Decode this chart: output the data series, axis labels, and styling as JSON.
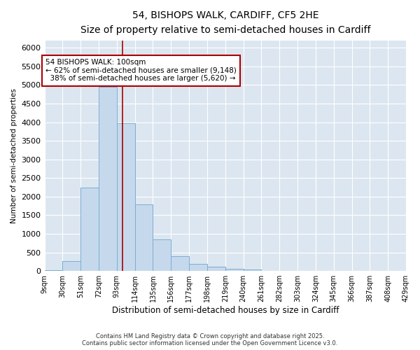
{
  "title_line1": "54, BISHOPS WALK, CARDIFF, CF5 2HE",
  "title_line2": "Size of property relative to semi-detached houses in Cardiff",
  "xlabel": "Distribution of semi-detached houses by size in Cardiff",
  "ylabel": "Number of semi-detached properties",
  "bin_edges": [
    9,
    30,
    51,
    72,
    93,
    114,
    135,
    156,
    177,
    198,
    219,
    240,
    261,
    282,
    303,
    324,
    345,
    366,
    387,
    408,
    429
  ],
  "bar_heights": [
    30,
    260,
    2250,
    4950,
    3980,
    1800,
    850,
    400,
    200,
    110,
    65,
    35,
    5,
    5,
    2,
    2,
    1,
    1,
    0,
    0
  ],
  "bar_color": "#c6d9ec",
  "bar_edgecolor": "#7aadd4",
  "vline_x": 100,
  "vline_color": "#aa0000",
  "property_label": "54 BISHOPS WALK: 100sqm",
  "smaller_pct": 62,
  "smaller_count": 9148,
  "larger_pct": 38,
  "larger_count": 5620,
  "ylim": [
    0,
    6200
  ],
  "fig_background": "#ffffff",
  "ax_background": "#dce6f0",
  "grid_color": "#ffffff",
  "footer_line1": "Contains HM Land Registry data © Crown copyright and database right 2025.",
  "footer_line2": "Contains public sector information licensed under the Open Government Licence v3.0."
}
